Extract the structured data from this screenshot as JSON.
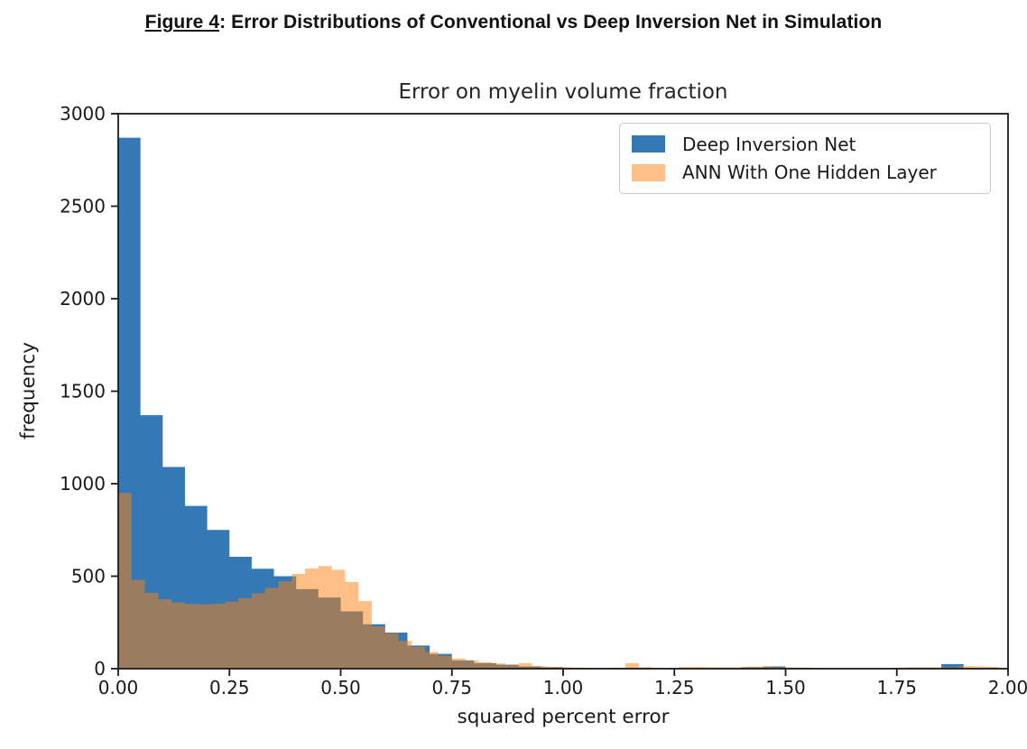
{
  "caption": {
    "prefix": "Figure 4",
    "rest": ": Error Distributions of Conventional vs Deep Inversion Net in Simulation"
  },
  "chart_data": {
    "type": "bar",
    "subtype": "overlaid-histograms",
    "title": "Error on myelin volume fraction",
    "xlabel": "squared percent error",
    "ylabel": "frequency",
    "xlim": [
      0,
      2
    ],
    "ylim": [
      0,
      3000
    ],
    "xtick_values": [
      0,
      0.25,
      0.5,
      0.75,
      1.0,
      1.25,
      1.5,
      1.75,
      2.0
    ],
    "xtick_labels": [
      "0.00",
      "0.25",
      "0.50",
      "0.75",
      "1.00",
      "1.25",
      "1.50",
      "1.75",
      "2.00"
    ],
    "ytick_values": [
      0,
      500,
      1000,
      1500,
      2000,
      2500,
      3000
    ],
    "ytick_labels": [
      "0",
      "500",
      "1000",
      "1500",
      "2000",
      "2500",
      "3000"
    ],
    "grid": false,
    "legend": {
      "position": "upper right",
      "entries": [
        "Deep Inversion Net",
        "ANN With One Hidden Layer"
      ]
    },
    "series": [
      {
        "name": "Deep Inversion Net",
        "color": "#3478b5",
        "alpha": 1.0,
        "bin_start": 0,
        "bin_width": 0.05,
        "counts": [
          2870,
          1370,
          1090,
          880,
          750,
          605,
          540,
          500,
          430,
          385,
          310,
          240,
          195,
          125,
          80,
          45,
          30,
          22,
          12,
          8,
          4,
          3,
          3,
          5,
          3,
          2,
          2,
          2,
          8,
          12,
          3,
          2,
          2,
          2,
          2,
          2,
          2,
          25,
          2,
          0
        ]
      },
      {
        "name": "ANN With One Hidden Layer",
        "color": "#ff7f0e",
        "alpha": 0.5,
        "rendered_on_white": "#ffbf86",
        "overlap_color_with_blue": "#8f7b61",
        "bin_start": 0,
        "bin_width": 0.03,
        "counts": [
          950,
          480,
          410,
          375,
          358,
          350,
          348,
          352,
          362,
          382,
          408,
          438,
          472,
          512,
          542,
          555,
          535,
          468,
          365,
          230,
          192,
          150,
          118,
          90,
          70,
          55,
          44,
          35,
          28,
          22,
          30,
          14,
          10,
          8,
          6,
          5,
          5,
          6,
          30,
          8,
          5,
          4,
          9,
          9,
          8,
          8,
          8,
          11,
          11,
          8,
          7,
          6,
          5,
          4,
          4,
          4,
          4,
          4,
          6,
          8,
          8,
          8,
          8,
          14,
          12,
          10
        ]
      }
    ]
  }
}
